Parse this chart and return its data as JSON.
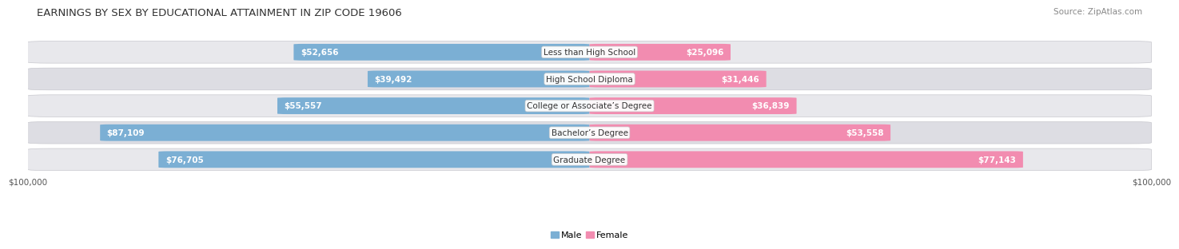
{
  "title": "EARNINGS BY SEX BY EDUCATIONAL ATTAINMENT IN ZIP CODE 19606",
  "source": "Source: ZipAtlas.com",
  "categories": [
    "Less than High School",
    "High School Diploma",
    "College or Associate’s Degree",
    "Bachelor’s Degree",
    "Graduate Degree"
  ],
  "male_values": [
    52656,
    39492,
    55557,
    87109,
    76705
  ],
  "female_values": [
    25096,
    31446,
    36839,
    53558,
    77143
  ],
  "male_color": "#7bafd4",
  "female_color": "#f28cb0",
  "male_color_dark": "#6b9fc4",
  "female_color_dark": "#e87ca0",
  "row_bg": "#e8e8ec",
  "row_bg2": "#dddde3",
  "max_value": 100000,
  "axis_label_left": "$100,000",
  "axis_label_right": "$100,000",
  "title_fontsize": 9.5,
  "source_fontsize": 7.5,
  "bar_height": 0.62,
  "bar_label_fontsize": 7.5,
  "category_fontsize": 7.5,
  "label_threshold": 0.18
}
